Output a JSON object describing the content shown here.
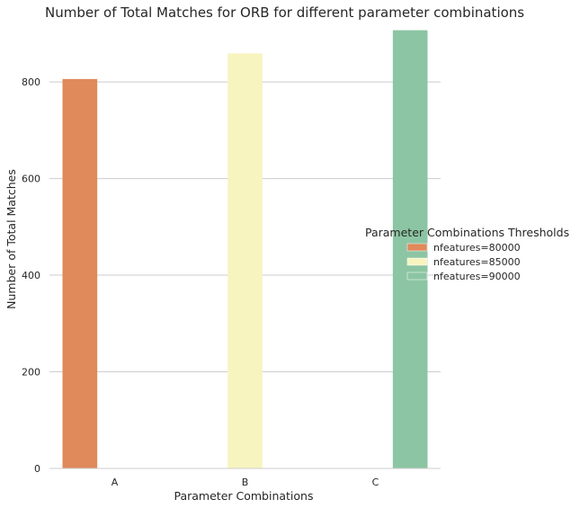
{
  "chart_data": {
    "type": "bar",
    "title": "Number of Total Matches for ORB for different parameter combinations",
    "xlabel": "Parameter Combinations",
    "ylabel": "Number of Total Matches",
    "categories": [
      "A",
      "B",
      "C"
    ],
    "series": [
      {
        "name": "nfeatures=80000",
        "color": "#e0895a",
        "values": [
          806,
          0,
          0
        ]
      },
      {
        "name": "nfeatures=85000",
        "color": "#f7f4c0",
        "values": [
          0,
          859,
          0
        ]
      },
      {
        "name": "nfeatures=90000",
        "color": "#8cc5a3",
        "values": [
          0,
          0,
          907
        ]
      }
    ],
    "ylim": [
      0,
      910
    ],
    "yticks": [
      0,
      200,
      400,
      600,
      800
    ],
    "grid": true,
    "legend": {
      "title": "Parameter Combinations Thresholds",
      "position": "right"
    }
  }
}
